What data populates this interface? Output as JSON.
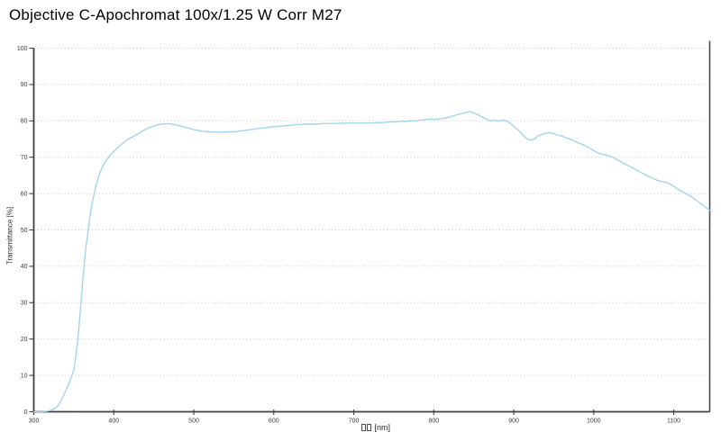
{
  "title": "Objective C-Apochromat 100x/1.25 W Corr M27",
  "colors": {
    "background": "#ffffff",
    "curve": "#9dd2ea",
    "axis": "#3f3f3f",
    "right_border": "#4a4a4a",
    "grid": "#c6c6c6",
    "tick_label": "#3c3c3c",
    "title_text": "#000000"
  },
  "chart_data": {
    "type": "line",
    "title": "Objective C-Apochromat 100x/1.25 W Corr M27",
    "ylabel": "Transmittance [%]",
    "xlabel_unit": "[nm]",
    "xlabel_missing_glyph_count": 2,
    "xlim": [
      300,
      1145
    ],
    "ylim": [
      0,
      100
    ],
    "xticks": [
      300,
      400,
      500,
      600,
      700,
      800,
      900,
      1000,
      1100
    ],
    "yticks": [
      0,
      10,
      20,
      30,
      40,
      50,
      60,
      70,
      80,
      90,
      100
    ],
    "grid": "horizontal-dotted",
    "legend": "none",
    "series": [
      {
        "name": "Transmittance",
        "color": "#9dd2ea",
        "x": [
          300,
          305,
          310,
          315,
          320,
          325,
          330,
          334,
          338,
          342,
          346,
          350,
          353,
          356,
          359,
          362,
          365,
          368,
          371,
          374,
          377,
          380,
          384,
          388,
          392,
          396,
          400,
          405,
          410,
          415,
          420,
          425,
          430,
          435,
          440,
          445,
          450,
          455,
          460,
          465,
          470,
          475,
          480,
          485,
          490,
          495,
          500,
          505,
          510,
          515,
          520,
          525,
          530,
          535,
          540,
          545,
          550,
          555,
          560,
          565,
          570,
          575,
          580,
          585,
          590,
          595,
          600,
          610,
          620,
          630,
          640,
          650,
          660,
          670,
          680,
          690,
          700,
          710,
          720,
          730,
          740,
          745,
          750,
          755,
          760,
          765,
          770,
          775,
          780,
          785,
          790,
          795,
          800,
          805,
          810,
          815,
          820,
          825,
          830,
          835,
          840,
          845,
          850,
          855,
          860,
          865,
          868,
          872,
          876,
          880,
          884,
          888,
          892,
          896,
          900,
          905,
          910,
          915,
          920,
          925,
          930,
          935,
          940,
          945,
          950,
          955,
          960,
          965,
          970,
          975,
          980,
          985,
          990,
          995,
          1000,
          1005,
          1010,
          1015,
          1020,
          1025,
          1030,
          1035,
          1040,
          1045,
          1050,
          1055,
          1060,
          1065,
          1070,
          1075,
          1080,
          1085,
          1090,
          1095,
          1100,
          1105,
          1110,
          1115,
          1120,
          1125,
          1130,
          1135,
          1140,
          1145
        ],
        "y": [
          0,
          0,
          0,
          0.1,
          0.3,
          0.7,
          1.6,
          3,
          4.8,
          6.8,
          9,
          11.5,
          16,
          22,
          30,
          38,
          45,
          50,
          55,
          58.5,
          61.5,
          64,
          66.5,
          68.3,
          69.6,
          70.7,
          71.6,
          72.7,
          73.6,
          74.5,
          75.2,
          75.8,
          76.4,
          77.1,
          77.7,
          78.2,
          78.6,
          78.9,
          79.1,
          79.2,
          79.2,
          79,
          78.8,
          78.5,
          78.2,
          77.9,
          77.6,
          77.4,
          77.2,
          77.1,
          77,
          76.9,
          76.9,
          76.9,
          76.9,
          77,
          77,
          77.1,
          77.3,
          77.4,
          77.6,
          77.7,
          77.9,
          78,
          78.1,
          78.3,
          78.4,
          78.6,
          78.8,
          79,
          79.1,
          79.1,
          79.2,
          79.3,
          79.3,
          79.4,
          79.4,
          79.4,
          79.4,
          79.5,
          79.6,
          79.7,
          79.7,
          79.8,
          79.9,
          79.8,
          80,
          80,
          80.1,
          80.2,
          80.4,
          80.5,
          80.4,
          80.5,
          80.6,
          80.8,
          81.1,
          81.4,
          81.7,
          82,
          82.3,
          82.6,
          82.2,
          81.7,
          81.1,
          80.6,
          80.2,
          80,
          80.2,
          79.9,
          80.1,
          80.2,
          79.8,
          79.3,
          78.5,
          77.6,
          76.5,
          75.3,
          74.7,
          74.9,
          75.8,
          76.3,
          76.6,
          76.7,
          76.5,
          76.1,
          75.8,
          75.4,
          75,
          74.5,
          74,
          73.6,
          73.1,
          72.5,
          71.8,
          71.2,
          70.8,
          70.6,
          70.3,
          69.9,
          69.2,
          68.6,
          68,
          67.5,
          66.9,
          66.3,
          65.7,
          65.1,
          64.6,
          64.1,
          63.6,
          63.3,
          63.1,
          62.7,
          62,
          61.3,
          60.6,
          60,
          59.4,
          58.7,
          57.9,
          57,
          56.2,
          55.4
        ]
      }
    ]
  }
}
